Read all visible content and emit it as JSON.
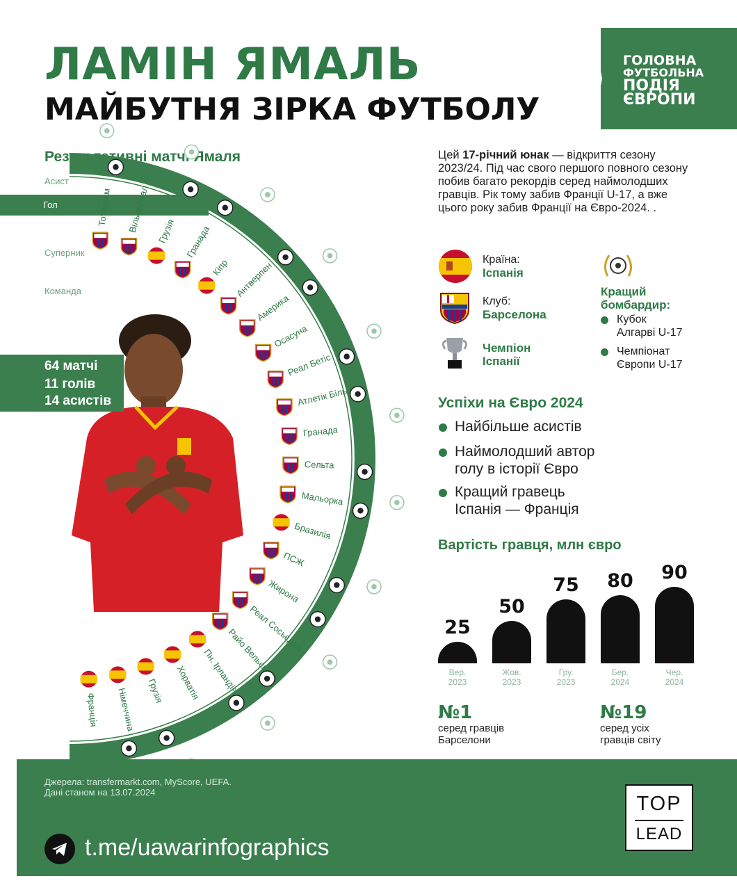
{
  "header": {
    "title_line1": "ЛАМІН ЯМАЛЬ",
    "title_line2": "МАЙБУТНЯ ЗІРКА ФУТБОЛУ",
    "banner_lines": [
      "ГОЛОВНА",
      "ФУТБОЛЬНА",
      "ПОДІЯ",
      "ЄВРОПИ"
    ]
  },
  "matches": {
    "heading": "Результативні матчі Ямаля",
    "row_labels": {
      "assist": "Асист",
      "goal": "Гол",
      "opponent": "Суперник",
      "team": "Команда"
    },
    "opponents": [
      "Тотенгем",
      "Вільярреал",
      "Грузія",
      "Гранада",
      "Кіпр",
      "Антверпен",
      "Америка",
      "Осасуна",
      "Реал Бетіс",
      "Атлетік Більбао",
      "Гранада",
      "Сельта",
      "Мальорка",
      "Бразилія",
      "ПСЖ",
      "Жирона",
      "Реал Сосьєдад",
      "Райо Вельєкано",
      "Пн. Ірландія",
      "Хорватія",
      "Грузія",
      "Німеччина",
      "Франція"
    ],
    "teams": [
      "barcelona",
      "barcelona",
      "spain",
      "barcelona",
      "spain",
      "barcelona",
      "barcelona",
      "barcelona",
      "barcelona",
      "barcelona",
      "barcelona",
      "barcelona",
      "barcelona",
      "spain",
      "barcelona",
      "barcelona",
      "barcelona",
      "barcelona",
      "spain",
      "spain",
      "spain",
      "spain",
      "spain"
    ],
    "stats": {
      "matches": "64 матчі",
      "goals": "11 голів",
      "assists": "14 асистів"
    }
  },
  "intro": {
    "pre": "Цей ",
    "bold": "17-річний юнак",
    "post": " —  відкриття сезону 2023/24. Під час свого першого повного сезону побив багато рекордів серед наймолодших гравців. Рік тому забив Франції U-17, а вже цього року забив Франції на Євро-2024. ."
  },
  "info": {
    "country_label": "Країна:",
    "country_value": "Іспанія",
    "club_label": "Клуб:",
    "club_value": "Барселона",
    "champion_line1": "Чемпіон",
    "champion_line2": "Іспанії",
    "best_scorer_line1": "Кращий",
    "best_scorer_line2": "бомбардир:",
    "best_scorer_items": [
      {
        "line1": "Кубок",
        "line2": "Алгарві U-17"
      },
      {
        "line1": "Чемпіонат",
        "line2": "Європи U-17"
      }
    ]
  },
  "euro": {
    "title": "Успіхи на Євро 2024",
    "items": [
      {
        "line1": "Найбільше асистів",
        "line2": ""
      },
      {
        "line1": "Наймолодший автор",
        "line2": "голу в історії Євро"
      },
      {
        "line1": "Кращий гравець",
        "line2": "Іспанія — Франція"
      }
    ]
  },
  "value": {
    "title": "Вартість гравця, млн євро",
    "bars": [
      {
        "value": "25",
        "month": "Вер.",
        "year": "2023",
        "num": 25
      },
      {
        "value": "50",
        "month": "Жов.",
        "year": "2023",
        "num": 50
      },
      {
        "value": "75",
        "month": "Гру.",
        "year": "2023",
        "num": 75
      },
      {
        "value": "80",
        "month": "Бер.",
        "year": "2024",
        "num": 80
      },
      {
        "value": "90",
        "month": "Чер.",
        "year": "2024",
        "num": 90
      }
    ]
  },
  "ranks": {
    "left": {
      "big": "№1",
      "line1": "серед гравців",
      "line2": "Барселони"
    },
    "right": {
      "big": "№19",
      "line1": "серед усіх",
      "line2": "гравців світу"
    }
  },
  "footer": {
    "sources": "Джерела: transfermarkt.com, MyScore, UEFA.",
    "date": "Дані станом на 13.07.2024",
    "link": "t.me/uawarinfographics",
    "logo_top": "TOP",
    "logo_bottom": "LEAD"
  },
  "colors": {
    "green": "#3b7f4f",
    "text_green": "#2f7a46",
    "spain_red": "#c8102e",
    "spain_yellow": "#f6c400",
    "barca_blue": "#1a3d8f",
    "barca_red": "#a50044"
  }
}
